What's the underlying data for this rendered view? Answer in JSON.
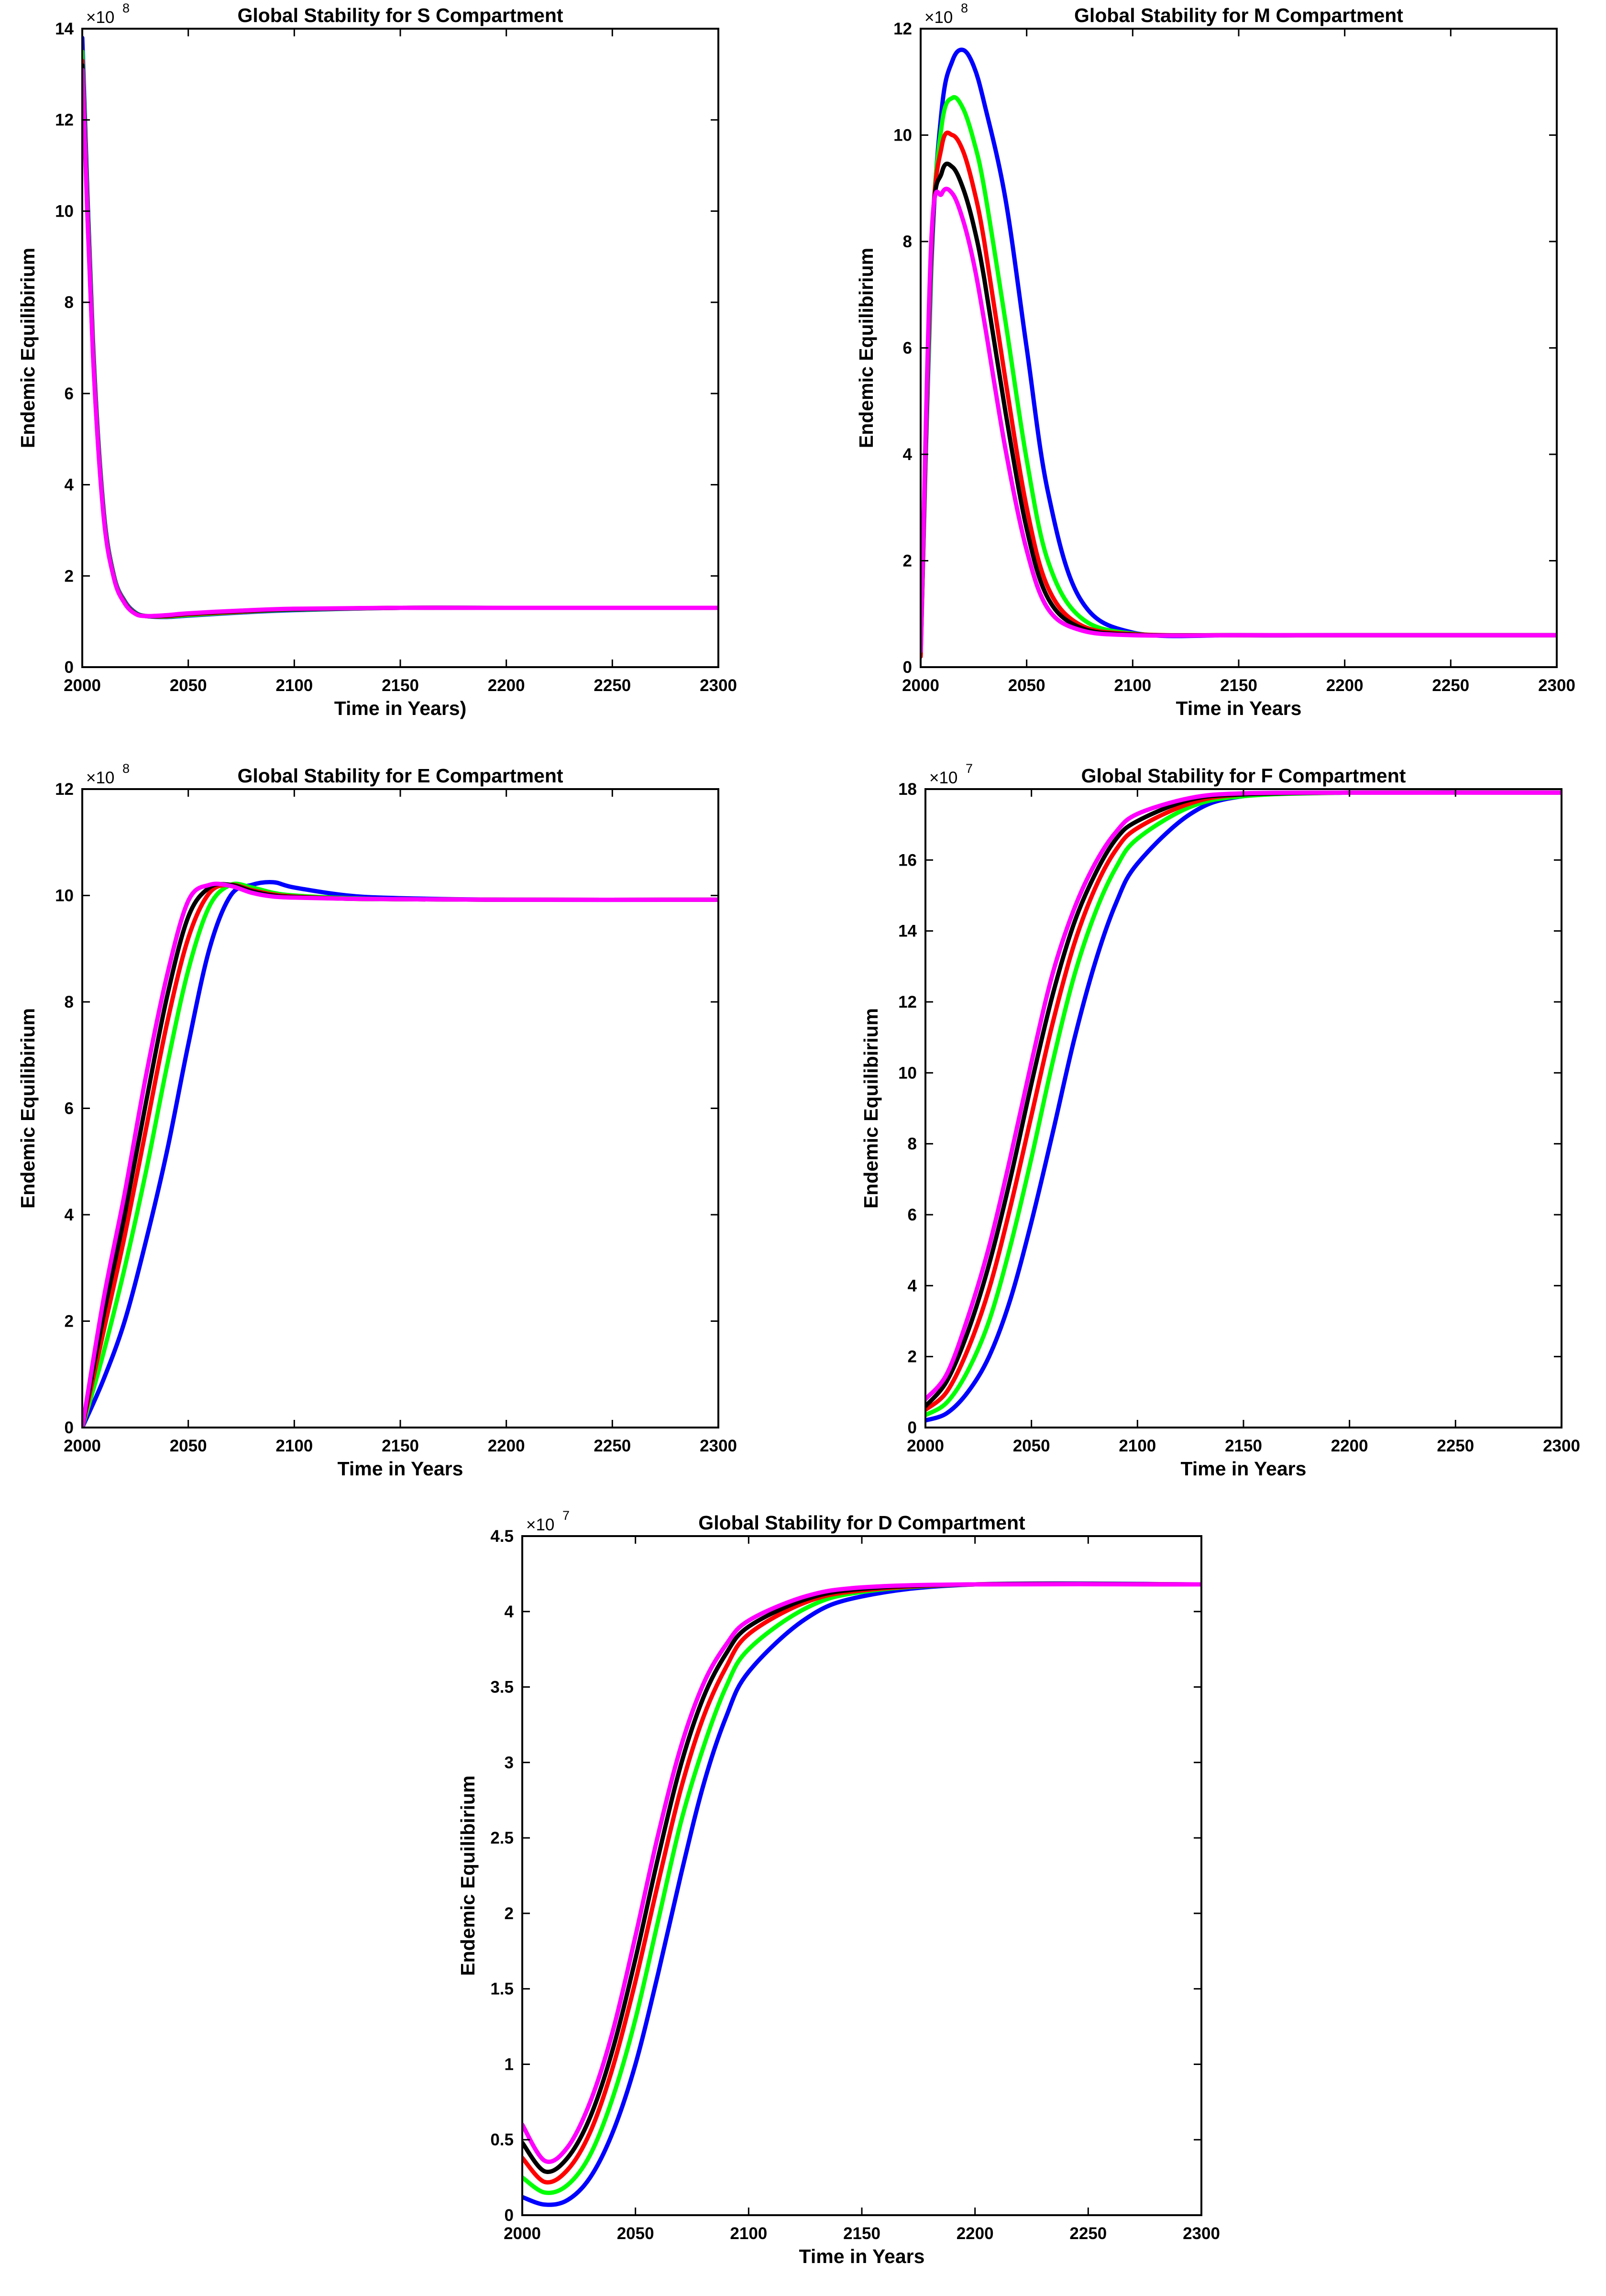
{
  "chart_data": [
    {
      "id": "S",
      "type": "line",
      "title": "Global Stability for S Compartment",
      "xlabel": "Time in Years)",
      "ylabel": "Endemic Equilibirium",
      "exponent": "×10",
      "exponent_power": "8",
      "xlim": [
        2000,
        2300
      ],
      "ylim": [
        0,
        14
      ],
      "xticks": [
        2000,
        2050,
        2100,
        2150,
        2200,
        2250,
        2300
      ],
      "yticks": [
        0,
        2,
        4,
        6,
        8,
        10,
        12,
        14
      ],
      "x": [
        2000,
        2005,
        2010,
        2015,
        2020,
        2025,
        2030,
        2040,
        2050,
        2075,
        2100,
        2150,
        2200,
        2300
      ],
      "series": [
        {
          "name": "blue",
          "color": "#0000ff",
          "values": [
            13.8,
            7.2,
            3.5,
            2.0,
            1.45,
            1.2,
            1.12,
            1.1,
            1.13,
            1.2,
            1.25,
            1.3,
            1.3,
            1.3
          ]
        },
        {
          "name": "green",
          "color": "#00ff00",
          "values": [
            13.5,
            7.1,
            3.45,
            1.98,
            1.43,
            1.19,
            1.12,
            1.11,
            1.14,
            1.21,
            1.26,
            1.3,
            1.3,
            1.3
          ]
        },
        {
          "name": "red",
          "color": "#ff0000",
          "values": [
            13.3,
            7.0,
            3.4,
            1.96,
            1.42,
            1.18,
            1.12,
            1.12,
            1.16,
            1.22,
            1.27,
            1.3,
            1.3,
            1.3
          ]
        },
        {
          "name": "black",
          "color": "#000000",
          "values": [
            13.2,
            6.95,
            3.38,
            1.95,
            1.41,
            1.18,
            1.12,
            1.13,
            1.17,
            1.23,
            1.27,
            1.3,
            1.3,
            1.3
          ]
        },
        {
          "name": "magenta",
          "color": "#ff00ff",
          "values": [
            13.1,
            6.9,
            3.35,
            1.94,
            1.4,
            1.17,
            1.12,
            1.14,
            1.18,
            1.24,
            1.28,
            1.3,
            1.3,
            1.3
          ]
        }
      ]
    },
    {
      "id": "M",
      "type": "line",
      "title": "Global Stability for M Compartment",
      "xlabel": "Time in Years",
      "ylabel": "Endemic Equilibirium",
      "exponent": "×10",
      "exponent_power": "8",
      "xlim": [
        2000,
        2300
      ],
      "ylim": [
        0,
        12
      ],
      "xticks": [
        2000,
        2050,
        2100,
        2150,
        2200,
        2250,
        2300
      ],
      "yticks": [
        0,
        2,
        4,
        6,
        8,
        10,
        12
      ],
      "x": [
        2000,
        2005,
        2010,
        2015,
        2020,
        2025,
        2030,
        2040,
        2050,
        2060,
        2075,
        2100,
        2150,
        2200,
        2300
      ],
      "series": [
        {
          "name": "blue",
          "color": "#0000ff",
          "values": [
            0.2,
            7.5,
            10.5,
            11.4,
            11.6,
            11.3,
            10.6,
            8.8,
            6.0,
            3.3,
            1.3,
            0.65,
            0.6,
            0.6,
            0.6
          ]
        },
        {
          "name": "green",
          "color": "#00ff00",
          "values": [
            0.2,
            7.7,
            10.2,
            10.7,
            10.5,
            9.9,
            9.0,
            6.5,
            3.9,
            2.0,
            0.95,
            0.63,
            0.6,
            0.6,
            0.6
          ]
        },
        {
          "name": "red",
          "color": "#ff0000",
          "values": [
            0.2,
            7.8,
            9.8,
            10.0,
            9.7,
            9.0,
            8.0,
            5.4,
            3.0,
            1.5,
            0.8,
            0.62,
            0.6,
            0.6,
            0.6
          ]
        },
        {
          "name": "black",
          "color": "#000000",
          "values": [
            0.3,
            7.9,
            9.3,
            9.4,
            9.0,
            8.3,
            7.3,
            4.8,
            2.6,
            1.3,
            0.75,
            0.61,
            0.6,
            0.6,
            0.6
          ]
        },
        {
          "name": "magenta",
          "color": "#ff00ff",
          "values": [
            0.3,
            8.0,
            8.9,
            8.9,
            8.4,
            7.6,
            6.5,
            4.1,
            2.2,
            1.1,
            0.7,
            0.6,
            0.6,
            0.6,
            0.6
          ]
        }
      ]
    },
    {
      "id": "E",
      "type": "line",
      "title": "Global Stability for E Compartment",
      "xlabel": "Time in Years",
      "ylabel": "Endemic Equilibirium",
      "exponent": "×10",
      "exponent_power": "8",
      "xlim": [
        2000,
        2300
      ],
      "ylim": [
        0,
        12
      ],
      "xticks": [
        2000,
        2050,
        2100,
        2150,
        2200,
        2250,
        2300
      ],
      "yticks": [
        0,
        2,
        4,
        6,
        8,
        10,
        12
      ],
      "x": [
        2000,
        2010,
        2020,
        2030,
        2040,
        2050,
        2060,
        2070,
        2080,
        2090,
        2100,
        2125,
        2150,
        2200,
        2300
      ],
      "series": [
        {
          "name": "blue",
          "color": "#0000ff",
          "values": [
            0,
            0.9,
            2.0,
            3.5,
            5.2,
            7.2,
            9.0,
            10.0,
            10.2,
            10.25,
            10.15,
            10.0,
            9.95,
            9.92,
            9.92
          ]
        },
        {
          "name": "green",
          "color": "#00ff00",
          "values": [
            0,
            1.4,
            3.0,
            4.8,
            6.8,
            8.6,
            9.8,
            10.2,
            10.15,
            10.05,
            10.0,
            9.95,
            9.93,
            9.92,
            9.92
          ]
        },
        {
          "name": "red",
          "color": "#ff0000",
          "values": [
            0,
            1.8,
            3.6,
            5.6,
            7.6,
            9.2,
            10.05,
            10.2,
            10.1,
            10.02,
            9.98,
            9.94,
            9.93,
            9.92,
            9.92
          ]
        },
        {
          "name": "black",
          "color": "#000000",
          "values": [
            0,
            2.1,
            4.0,
            6.1,
            8.1,
            9.6,
            10.15,
            10.2,
            10.08,
            10.0,
            9.97,
            9.94,
            9.93,
            9.92,
            9.92
          ]
        },
        {
          "name": "magenta",
          "color": "#ff00ff",
          "values": [
            0,
            2.4,
            4.4,
            6.6,
            8.5,
            9.9,
            10.2,
            10.18,
            10.05,
            9.98,
            9.96,
            9.94,
            9.93,
            9.92,
            9.92
          ]
        }
      ]
    },
    {
      "id": "F",
      "type": "line",
      "title": "Global Stability for F Compartment",
      "xlabel": "Time in Years",
      "ylabel": "Endemic Equilibirium",
      "exponent": "×10",
      "exponent_power": "7",
      "xlim": [
        2000,
        2300
      ],
      "ylim": [
        0,
        18
      ],
      "xticks": [
        2000,
        2050,
        2100,
        2150,
        2200,
        2250,
        2300
      ],
      "yticks": [
        0,
        2,
        4,
        6,
        8,
        10,
        12,
        14,
        16,
        18
      ],
      "x": [
        2000,
        2010,
        2020,
        2030,
        2040,
        2050,
        2060,
        2070,
        2080,
        2090,
        2100,
        2125,
        2150,
        2200,
        2300
      ],
      "series": [
        {
          "name": "blue",
          "color": "#0000ff",
          "values": [
            0.2,
            0.4,
            1.0,
            2.0,
            3.6,
            5.8,
            8.3,
            10.9,
            13.1,
            14.8,
            15.9,
            17.3,
            17.8,
            17.9,
            17.9
          ]
        },
        {
          "name": "green",
          "color": "#00ff00",
          "values": [
            0.35,
            0.7,
            1.6,
            3.0,
            5.1,
            7.6,
            10.3,
            12.7,
            14.5,
            15.8,
            16.6,
            17.5,
            17.8,
            17.9,
            17.9
          ]
        },
        {
          "name": "red",
          "color": "#ff0000",
          "values": [
            0.5,
            1.0,
            2.2,
            3.9,
            6.2,
            8.8,
            11.4,
            13.6,
            15.2,
            16.3,
            16.9,
            17.6,
            17.85,
            17.9,
            17.9
          ]
        },
        {
          "name": "black",
          "color": "#000000",
          "values": [
            0.6,
            1.3,
            2.7,
            4.6,
            7.0,
            9.7,
            12.2,
            14.2,
            15.6,
            16.6,
            17.1,
            17.7,
            17.85,
            17.9,
            17.9
          ]
        },
        {
          "name": "magenta",
          "color": "#ff00ff",
          "values": [
            0.8,
            1.5,
            3.1,
            5.1,
            7.6,
            10.3,
            12.8,
            14.6,
            15.9,
            16.8,
            17.3,
            17.75,
            17.88,
            17.9,
            17.9
          ]
        }
      ]
    },
    {
      "id": "D",
      "type": "line",
      "title": "Global Stability for D Compartment",
      "xlabel": "Time in Years",
      "ylabel": "Endemic Equilibirium",
      "exponent": "×10",
      "exponent_power": "7",
      "xlim": [
        2000,
        2300
      ],
      "ylim": [
        0,
        4.5
      ],
      "xticks": [
        2000,
        2050,
        2100,
        2150,
        2200,
        2250,
        2300
      ],
      "yticks": [
        0,
        0.5,
        1,
        1.5,
        2,
        2.5,
        3,
        3.5,
        4,
        4.5
      ],
      "x": [
        2000,
        2010,
        2020,
        2030,
        2040,
        2050,
        2060,
        2070,
        2080,
        2090,
        2100,
        2125,
        2150,
        2200,
        2300
      ],
      "series": [
        {
          "name": "blue",
          "color": "#0000ff",
          "values": [
            0.12,
            0.07,
            0.1,
            0.25,
            0.55,
            1.0,
            1.6,
            2.25,
            2.85,
            3.3,
            3.6,
            3.95,
            4.1,
            4.18,
            4.18
          ]
        },
        {
          "name": "green",
          "color": "#00ff00",
          "values": [
            0.25,
            0.15,
            0.2,
            0.4,
            0.78,
            1.3,
            1.95,
            2.6,
            3.1,
            3.5,
            3.75,
            4.02,
            4.13,
            4.18,
            4.18
          ]
        },
        {
          "name": "red",
          "color": "#ff0000",
          "values": [
            0.38,
            0.22,
            0.3,
            0.55,
            0.98,
            1.55,
            2.2,
            2.82,
            3.3,
            3.63,
            3.85,
            4.06,
            4.14,
            4.18,
            4.18
          ]
        },
        {
          "name": "black",
          "color": "#000000",
          "values": [
            0.48,
            0.29,
            0.38,
            0.65,
            1.1,
            1.7,
            2.37,
            2.98,
            3.43,
            3.72,
            3.9,
            4.08,
            4.15,
            4.18,
            4.18
          ]
        },
        {
          "name": "magenta",
          "color": "#ff00ff",
          "values": [
            0.6,
            0.36,
            0.45,
            0.75,
            1.22,
            1.85,
            2.52,
            3.1,
            3.52,
            3.78,
            3.94,
            4.1,
            4.16,
            4.18,
            4.18
          ]
        }
      ]
    }
  ]
}
